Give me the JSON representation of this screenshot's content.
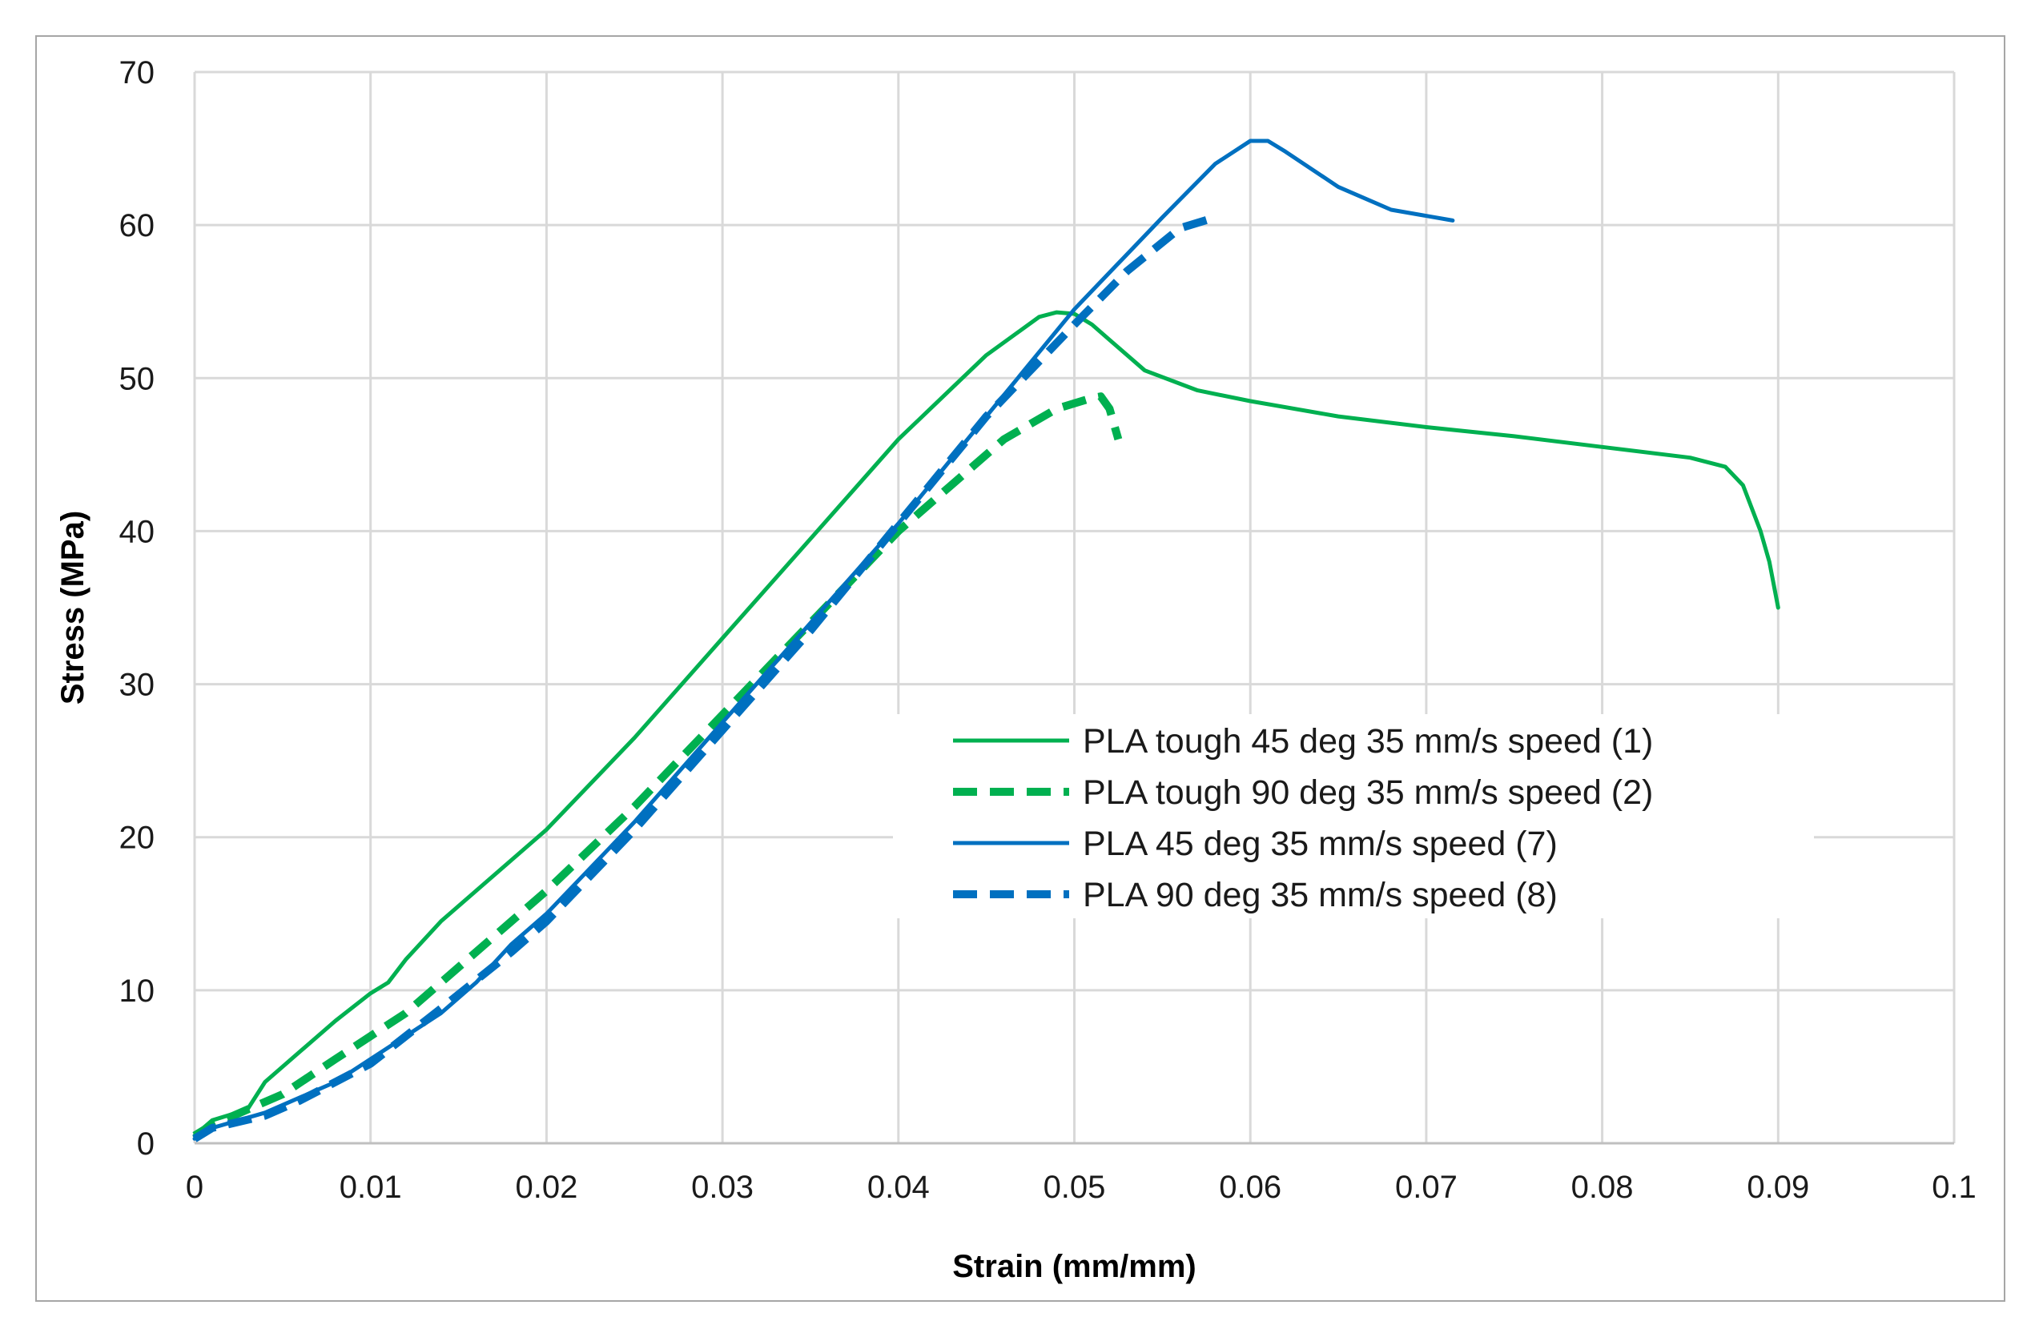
{
  "chart_data": {
    "type": "line",
    "title": "",
    "xlabel": "Strain (mm/mm)",
    "ylabel": "Stress (MPa)",
    "xlim": [
      0,
      0.1
    ],
    "ylim": [
      0,
      70
    ],
    "grid": true,
    "legend_position": "center-right",
    "x_ticks": [
      "0",
      "0.01",
      "0.02",
      "0.03",
      "0.04",
      "0.05",
      "0.06",
      "0.07",
      "0.08",
      "0.09",
      "0.1"
    ],
    "y_ticks": [
      "0",
      "10",
      "20",
      "30",
      "40",
      "50",
      "60",
      "70"
    ],
    "series": [
      {
        "name": "PLA tough 45 deg 35 mm/s speed (1)",
        "color": "#00b050",
        "dash": "solid",
        "x": [
          0,
          0.001,
          0.003,
          0.004,
          0.006,
          0.008,
          0.01,
          0.011,
          0.012,
          0.014,
          0.016,
          0.018,
          0.02,
          0.025,
          0.03,
          0.035,
          0.04,
          0.045,
          0.048,
          0.049,
          0.05,
          0.051,
          0.052,
          0.054,
          0.057,
          0.06,
          0.065,
          0.07,
          0.075,
          0.08,
          0.085,
          0.087,
          0.088,
          0.089,
          0.0895,
          0.09
        ],
        "y": [
          0.5,
          1.5,
          2.2,
          4.0,
          6.0,
          8.0,
          9.8,
          10.5,
          12.0,
          14.5,
          16.5,
          18.5,
          20.5,
          26.5,
          33.0,
          39.5,
          46.0,
          51.5,
          54.0,
          54.3,
          54.2,
          53.5,
          52.5,
          50.5,
          49.2,
          48.5,
          47.5,
          46.8,
          46.2,
          45.5,
          44.8,
          44.2,
          43.0,
          40.0,
          38.0,
          35.0
        ]
      },
      {
        "name": "PLA tough 90 deg 35 mm/s speed (2)",
        "color": "#00b050",
        "dash": "dashed",
        "x": [
          0,
          0.001,
          0.003,
          0.005,
          0.008,
          0.01,
          0.012,
          0.015,
          0.018,
          0.02,
          0.025,
          0.03,
          0.035,
          0.04,
          0.043,
          0.046,
          0.049,
          0.051,
          0.0515,
          0.052,
          0.0525
        ],
        "y": [
          0.5,
          1.2,
          2.2,
          3.2,
          5.5,
          7.0,
          8.5,
          11.5,
          14.5,
          16.5,
          22.0,
          28.0,
          34.0,
          40.0,
          43.0,
          46.0,
          48.0,
          48.7,
          48.8,
          48.0,
          46.0
        ]
      },
      {
        "name": "PLA 45 deg 35 mm/s speed (7)",
        "color": "#0070c0",
        "dash": "solid",
        "x": [
          0,
          0.001,
          0.004,
          0.006,
          0.008,
          0.01,
          0.012,
          0.014,
          0.016,
          0.018,
          0.02,
          0.025,
          0.03,
          0.035,
          0.04,
          0.045,
          0.05,
          0.055,
          0.058,
          0.06,
          0.061,
          0.062,
          0.065,
          0.068,
          0.0715
        ],
        "y": [
          0.3,
          1.0,
          2.0,
          3.0,
          4.0,
          5.5,
          7.0,
          8.5,
          10.5,
          13.0,
          15.0,
          21.0,
          27.5,
          34.0,
          40.5,
          47.5,
          54.5,
          60.5,
          64.0,
          65.5,
          65.5,
          64.8,
          62.5,
          61.0,
          60.3
        ]
      },
      {
        "name": "PLA 90 deg 35 mm/s speed (8)",
        "color": "#0070c0",
        "dash": "dashed",
        "x": [
          0,
          0.001,
          0.004,
          0.006,
          0.01,
          0.014,
          0.018,
          0.02,
          0.025,
          0.03,
          0.035,
          0.04,
          0.045,
          0.05,
          0.053,
          0.056,
          0.058
        ],
        "y": [
          0.3,
          1.0,
          1.8,
          2.8,
          5.2,
          8.8,
          12.5,
          14.5,
          20.5,
          27.0,
          33.5,
          40.5,
          47.5,
          53.5,
          57.0,
          59.8,
          60.5
        ]
      }
    ]
  }
}
